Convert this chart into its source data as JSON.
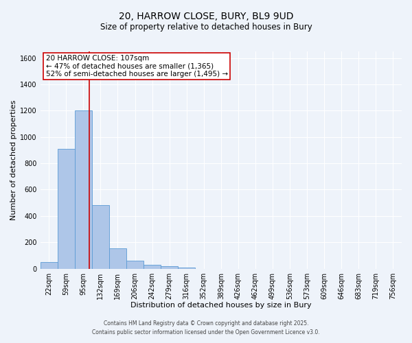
{
  "title_line1": "20, HARROW CLOSE, BURY, BL9 9UD",
  "title_line2": "Size of property relative to detached houses in Bury",
  "xlabel": "Distribution of detached houses by size in Bury",
  "ylabel": "Number of detached properties",
  "bar_labels": [
    "22sqm",
    "59sqm",
    "95sqm",
    "132sqm",
    "169sqm",
    "206sqm",
    "242sqm",
    "279sqm",
    "316sqm",
    "352sqm",
    "389sqm",
    "426sqm",
    "462sqm",
    "499sqm",
    "536sqm",
    "573sqm",
    "609sqm",
    "646sqm",
    "683sqm",
    "719sqm",
    "756sqm"
  ],
  "bar_values": [
    50,
    910,
    1200,
    480,
    155,
    60,
    30,
    20,
    10,
    0,
    0,
    0,
    0,
    0,
    0,
    0,
    0,
    0,
    0,
    0,
    0
  ],
  "bar_color": "#aec6e8",
  "bar_edge_color": "#5b9bd5",
  "red_line_x": 2.33,
  "annotation_title": "20 HARROW CLOSE: 107sqm",
  "annotation_line1": "← 47% of detached houses are smaller (1,365)",
  "annotation_line2": "52% of semi-detached houses are larger (1,495) →",
  "annotation_box_color": "#ffffff",
  "annotation_box_edge": "#cc0000",
  "red_line_color": "#cc0000",
  "ylim": [
    0,
    1650
  ],
  "yticks": [
    0,
    200,
    400,
    600,
    800,
    1000,
    1200,
    1400,
    1600
  ],
  "bg_color": "#eef3fa",
  "plot_bg_color": "#eef3fa",
  "footer1": "Contains HM Land Registry data © Crown copyright and database right 2025.",
  "footer2": "Contains public sector information licensed under the Open Government Licence v3.0.",
  "title_fontsize": 10,
  "subtitle_fontsize": 8.5,
  "axis_label_fontsize": 8,
  "tick_fontsize": 7,
  "annotation_fontsize": 7.5,
  "footer_fontsize": 5.5
}
